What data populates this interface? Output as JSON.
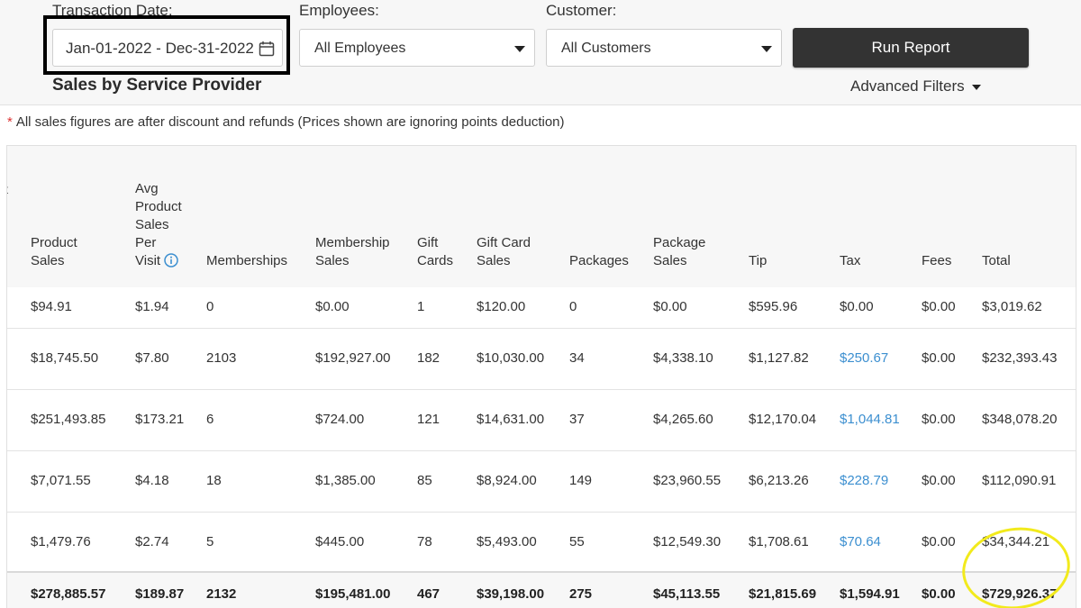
{
  "filters": {
    "transaction_date_label": "Transaction Date:",
    "transaction_date_value": "Jan-01-2022 - Dec-31-2022",
    "employees_label": "Employees:",
    "employees_value": "All Employees",
    "customer_label": "Customer:",
    "customer_value": "All Customers",
    "run_report_label": "Run Report",
    "advanced_filters_label": "Advanced Filters"
  },
  "section_title": "Sales by Service Provider",
  "note": {
    "asterisk": "*",
    "text": "All sales figures are after discount and refunds (Prices shown are ignoring points deduction)"
  },
  "table": {
    "cut_header": "t",
    "columns": {
      "product_sales": [
        "Product",
        "Sales"
      ],
      "avg_product_sales_per_visit": [
        "Avg",
        "Product",
        "Sales",
        "Per",
        "Visit"
      ],
      "memberships": [
        "Memberships"
      ],
      "membership_sales": [
        "Membership",
        "Sales"
      ],
      "gift_cards": [
        "Gift",
        "Cards"
      ],
      "gift_card_sales": [
        "Gift Card",
        "Sales"
      ],
      "packages": [
        "Packages"
      ],
      "package_sales": [
        "Package",
        "Sales"
      ],
      "tip": [
        "Tip"
      ],
      "tax": [
        "Tax"
      ],
      "fees": [
        "Fees"
      ],
      "total": [
        "Total"
      ]
    },
    "rows": [
      [
        "$94.91",
        "$1.94",
        "0",
        "$0.00",
        "1",
        "$120.00",
        "0",
        "$0.00",
        "$595.96",
        "$0.00",
        "$0.00",
        "$3,019.62"
      ],
      [
        "$18,745.50",
        "$7.80",
        "2103",
        "$192,927.00",
        "182",
        "$10,030.00",
        "34",
        "$4,338.10",
        "$1,127.82",
        "$250.67",
        "$0.00",
        "$232,393.43"
      ],
      [
        "$251,493.85",
        "$173.21",
        "6",
        "$724.00",
        "121",
        "$14,631.00",
        "37",
        "$4,265.60",
        "$12,170.04",
        "$1,044.81",
        "$0.00",
        "$348,078.20"
      ],
      [
        "$7,071.55",
        "$4.18",
        "18",
        "$1,385.00",
        "85",
        "$8,924.00",
        "149",
        "$23,960.55",
        "$6,213.26",
        "$228.79",
        "$0.00",
        "$112,090.91"
      ],
      [
        "$1,479.76",
        "$2.74",
        "5",
        "$445.00",
        "78",
        "$5,493.00",
        "55",
        "$12,549.30",
        "$1,708.61",
        "$70.64",
        "$0.00",
        "$34,344.21"
      ]
    ],
    "totals": [
      "$278,885.57",
      "$189.87",
      "2132",
      "$195,481.00",
      "467",
      "$39,198.00",
      "275",
      "$45,113.55",
      "$21,815.69",
      "$1,594.91",
      "$0.00",
      "$729,926.37"
    ]
  },
  "colors": {
    "link": "#3c8fd0",
    "run_button": "#333333",
    "highlight_box": "#000000",
    "highlight_circle": "#f2ea1c"
  },
  "icons": {
    "date": "calendar-icon",
    "select": "caret-down-icon",
    "info": "info-icon"
  }
}
